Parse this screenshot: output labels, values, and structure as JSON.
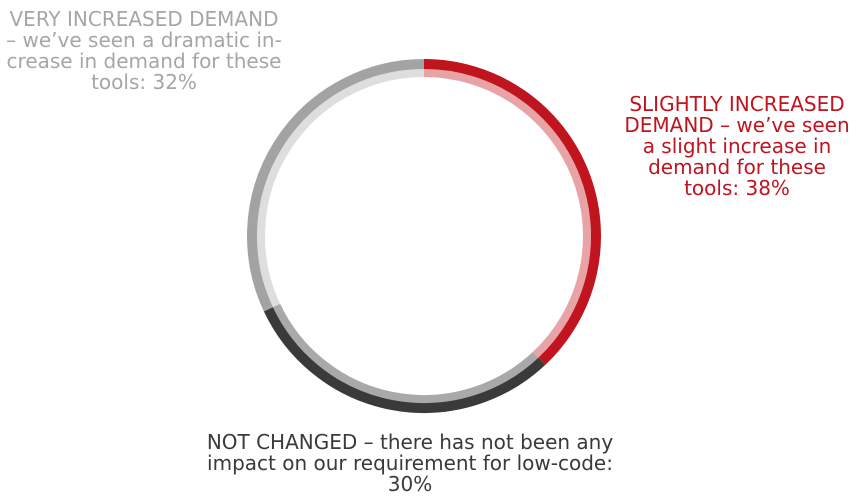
{
  "chart_data": {
    "type": "pie",
    "variant": "donut",
    "start": "12 o'clock",
    "direction": "clockwise",
    "slices": [
      {
        "name": "SLIGHTLY INCREASED DEMAND – we’ve seen a slight increase in demand for these tools",
        "value": 38,
        "label": "SLIGHTLY INCREASED DEMAND – we’ve seen a slight increase in demand for these tools: 38%",
        "color": "#c0141e",
        "inner_color": "#e8a3a6"
      },
      {
        "name": "NOT CHANGED – there has not been any impact on our requirement for low-code",
        "value": 30,
        "label": "NOT CHANGED – there has not been any impact on our requirement for low-code: 30%",
        "color": "#3a3a3a",
        "inner_color": "#a9a9a9"
      },
      {
        "name": "VERY INCREASED DEMAND – we’ve seen a dramatic increase in demand for these tools",
        "value": 32,
        "label": "VERY INCREASED DEMAND – we’ve seen a dramatic in-crease in demand for these tools: 32%",
        "color": "#a3a3a3",
        "inner_color": "#dedede"
      }
    ],
    "label_colors": {
      "very": "#a6a6a6",
      "slight": "#c0141e",
      "not": "#3a3a3a"
    }
  }
}
